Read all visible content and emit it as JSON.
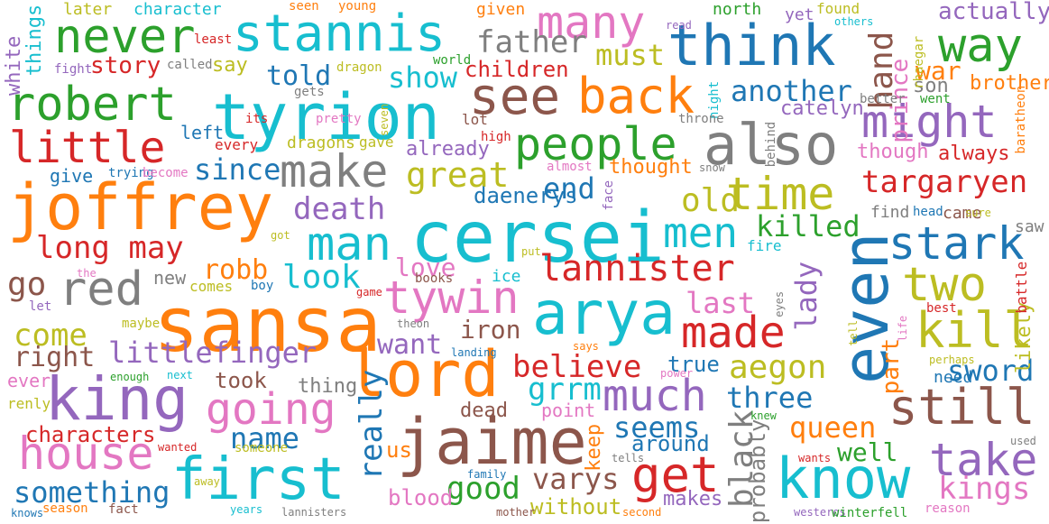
{
  "palette": {
    "blue": "#1f77b4",
    "orange": "#ff7f0e",
    "green": "#2ca02c",
    "red": "#d62728",
    "purple": "#9467bd",
    "brown": "#8c564b",
    "pink": "#e377c2",
    "gray": "#7f7f7f",
    "olive": "#bcbd22",
    "cyan": "#17becf"
  },
  "words": [
    {
      "text": "sansa",
      "color": "orange"
    },
    {
      "text": "cersei",
      "color": "cyan"
    },
    {
      "text": "joffrey",
      "color": "orange"
    },
    {
      "text": "tyrion",
      "color": "cyan"
    },
    {
      "text": "lord",
      "color": "orange"
    },
    {
      "text": "even",
      "color": "blue"
    },
    {
      "text": "jaime",
      "color": "brown"
    },
    {
      "text": "arya",
      "color": "cyan"
    },
    {
      "text": "king",
      "color": "purple"
    },
    {
      "text": "first",
      "color": "cyan"
    },
    {
      "text": "know",
      "color": "cyan"
    },
    {
      "text": "think",
      "color": "blue"
    },
    {
      "text": "also",
      "color": "gray"
    },
    {
      "text": "stannis",
      "color": "cyan"
    },
    {
      "text": "robert",
      "color": "green"
    },
    {
      "text": "many",
      "color": "pink"
    },
    {
      "text": "see",
      "color": "brown"
    },
    {
      "text": "man",
      "color": "cyan"
    },
    {
      "text": "never",
      "color": "green"
    },
    {
      "text": "back",
      "color": "orange"
    },
    {
      "text": "people",
      "color": "green"
    },
    {
      "text": "make",
      "color": "gray"
    },
    {
      "text": "time",
      "color": "olive"
    },
    {
      "text": "stark",
      "color": "blue"
    },
    {
      "text": "tywin",
      "color": "pink"
    },
    {
      "text": "made",
      "color": "red"
    },
    {
      "text": "much",
      "color": "purple"
    },
    {
      "text": "going",
      "color": "pink"
    },
    {
      "text": "house",
      "color": "pink"
    },
    {
      "text": "still",
      "color": "brown"
    },
    {
      "text": "get",
      "color": "red"
    },
    {
      "text": "take",
      "color": "purple"
    },
    {
      "text": "kill",
      "color": "olive"
    },
    {
      "text": "two",
      "color": "olive"
    },
    {
      "text": "way",
      "color": "green"
    },
    {
      "text": "might",
      "color": "purple"
    },
    {
      "text": "little",
      "color": "red"
    },
    {
      "text": "red",
      "color": "gray"
    },
    {
      "text": "lannister",
      "color": "red"
    },
    {
      "text": "men",
      "color": "cyan"
    },
    {
      "text": "great",
      "color": "olive"
    },
    {
      "text": "targaryen",
      "color": "red"
    },
    {
      "text": "another",
      "color": "blue"
    },
    {
      "text": "since",
      "color": "blue"
    },
    {
      "text": "father",
      "color": "gray"
    },
    {
      "text": "must",
      "color": "olive"
    },
    {
      "text": "show",
      "color": "cyan"
    },
    {
      "text": "told",
      "color": "blue"
    },
    {
      "text": "story",
      "color": "red"
    },
    {
      "text": "say",
      "color": "olive"
    },
    {
      "text": "children",
      "color": "red"
    },
    {
      "text": "hand",
      "color": "brown"
    },
    {
      "text": "war",
      "color": "orange"
    },
    {
      "text": "prince",
      "color": "pink"
    },
    {
      "text": "son",
      "color": "gray"
    },
    {
      "text": "brother",
      "color": "orange"
    },
    {
      "text": "actually",
      "color": "purple"
    },
    {
      "text": "long may",
      "color": "red"
    },
    {
      "text": "death",
      "color": "purple"
    },
    {
      "text": "end",
      "color": "blue"
    },
    {
      "text": "old",
      "color": "olive"
    },
    {
      "text": "killed",
      "color": "green"
    },
    {
      "text": "robb",
      "color": "orange"
    },
    {
      "text": "look",
      "color": "cyan"
    },
    {
      "text": "love",
      "color": "pink"
    },
    {
      "text": "go",
      "color": "brown"
    },
    {
      "text": "come",
      "color": "olive"
    },
    {
      "text": "littlefinger",
      "color": "purple"
    },
    {
      "text": "right",
      "color": "brown"
    },
    {
      "text": "want",
      "color": "purple"
    },
    {
      "text": "iron",
      "color": "brown"
    },
    {
      "text": "believe",
      "color": "red"
    },
    {
      "text": "grrm",
      "color": "cyan"
    },
    {
      "text": "last",
      "color": "pink"
    },
    {
      "text": "lady",
      "color": "purple"
    },
    {
      "text": "aegon",
      "color": "olive"
    },
    {
      "text": "part",
      "color": "orange"
    },
    {
      "text": "sword",
      "color": "blue"
    },
    {
      "text": "three",
      "color": "blue"
    },
    {
      "text": "queen",
      "color": "orange"
    },
    {
      "text": "seems",
      "color": "blue"
    },
    {
      "text": "black",
      "color": "gray"
    },
    {
      "text": "really",
      "color": "blue"
    },
    {
      "text": "name",
      "color": "blue"
    },
    {
      "text": "characters",
      "color": "red"
    },
    {
      "text": "something",
      "color": "blue"
    },
    {
      "text": "good",
      "color": "green"
    },
    {
      "text": "varys",
      "color": "brown"
    },
    {
      "text": "kings",
      "color": "pink"
    },
    {
      "text": "well",
      "color": "green"
    },
    {
      "text": "around",
      "color": "blue"
    },
    {
      "text": "probably",
      "color": "gray"
    },
    {
      "text": "us",
      "color": "orange"
    },
    {
      "text": "dead",
      "color": "brown"
    },
    {
      "text": "keep",
      "color": "orange"
    },
    {
      "text": "blood",
      "color": "pink"
    },
    {
      "text": "without",
      "color": "olive"
    },
    {
      "text": "makes",
      "color": "purple"
    },
    {
      "text": "took",
      "color": "brown"
    },
    {
      "text": "thing",
      "color": "gray"
    },
    {
      "text": "true",
      "color": "blue"
    },
    {
      "text": "point",
      "color": "pink"
    },
    {
      "text": "daenerys",
      "color": "blue"
    },
    {
      "text": "thought",
      "color": "orange"
    },
    {
      "text": "give",
      "color": "blue"
    },
    {
      "text": "left",
      "color": "blue"
    },
    {
      "text": "already",
      "color": "purple"
    },
    {
      "text": "dragons",
      "color": "olive"
    },
    {
      "text": "catelyn",
      "color": "purple"
    },
    {
      "text": "though",
      "color": "pink"
    },
    {
      "text": "always",
      "color": "red"
    },
    {
      "text": "new",
      "color": "gray"
    },
    {
      "text": "white",
      "color": "purple"
    },
    {
      "text": "things",
      "color": "cyan"
    },
    {
      "text": "later",
      "color": "olive"
    },
    {
      "text": "character",
      "color": "cyan"
    },
    {
      "text": "given",
      "color": "orange"
    },
    {
      "text": "north",
      "color": "green"
    },
    {
      "text": "yet",
      "color": "purple"
    },
    {
      "text": "likely",
      "color": "olive"
    },
    {
      "text": "ever",
      "color": "pink"
    },
    {
      "text": "came",
      "color": "brown"
    },
    {
      "text": "find",
      "color": "gray"
    },
    {
      "text": "saw",
      "color": "gray"
    },
    {
      "text": "need",
      "color": "blue"
    },
    {
      "text": "fire",
      "color": "cyan"
    },
    {
      "text": "ice",
      "color": "cyan"
    },
    {
      "text": "books",
      "color": "brown"
    },
    {
      "text": "comes",
      "color": "olive"
    },
    {
      "text": "battle",
      "color": "red"
    },
    {
      "text": "renly",
      "color": "olive"
    },
    {
      "text": "found",
      "color": "olive"
    },
    {
      "text": "seen",
      "color": "orange"
    },
    {
      "text": "young",
      "color": "orange"
    },
    {
      "text": "dragon",
      "color": "olive"
    },
    {
      "text": "world",
      "color": "green"
    },
    {
      "text": "read",
      "color": "purple"
    },
    {
      "text": "others",
      "color": "cyan"
    },
    {
      "text": "rhaegar",
      "color": "olive"
    },
    {
      "text": "gets",
      "color": "gray"
    },
    {
      "text": "seven",
      "color": "olive"
    },
    {
      "text": "night",
      "color": "cyan"
    },
    {
      "text": "went",
      "color": "green"
    },
    {
      "text": "better",
      "color": "gray"
    },
    {
      "text": "baratheon",
      "color": "orange"
    },
    {
      "text": "least",
      "color": "red"
    },
    {
      "text": "fight",
      "color": "purple"
    },
    {
      "text": "called",
      "color": "gray"
    },
    {
      "text": "its",
      "color": "red"
    },
    {
      "text": "pretty",
      "color": "pink"
    },
    {
      "text": "lot",
      "color": "brown"
    },
    {
      "text": "high",
      "color": "red"
    },
    {
      "text": "throne",
      "color": "gray"
    },
    {
      "text": "behind",
      "color": "gray"
    },
    {
      "text": "every",
      "color": "red"
    },
    {
      "text": "gave",
      "color": "olive"
    },
    {
      "text": "almost",
      "color": "pink"
    },
    {
      "text": "snow",
      "color": "gray"
    },
    {
      "text": "trying",
      "color": "blue"
    },
    {
      "text": "become",
      "color": "pink"
    },
    {
      "text": "face",
      "color": "purple"
    },
    {
      "text": "head",
      "color": "blue"
    },
    {
      "text": "sure",
      "color": "olive"
    },
    {
      "text": "got",
      "color": "olive"
    },
    {
      "text": "put",
      "color": "olive"
    },
    {
      "text": "the",
      "color": "pink"
    },
    {
      "text": "boy",
      "color": "blue"
    },
    {
      "text": "game",
      "color": "red"
    },
    {
      "text": "let",
      "color": "purple"
    },
    {
      "text": "eyes",
      "color": "gray"
    },
    {
      "text": "life",
      "color": "pink"
    },
    {
      "text": "best",
      "color": "red"
    },
    {
      "text": "maybe",
      "color": "olive"
    },
    {
      "text": "theon",
      "color": "gray"
    },
    {
      "text": "landing",
      "color": "blue"
    },
    {
      "text": "tell",
      "color": "olive"
    },
    {
      "text": "says",
      "color": "orange"
    },
    {
      "text": "power",
      "color": "pink"
    },
    {
      "text": "perhaps",
      "color": "olive"
    },
    {
      "text": "enough",
      "color": "green"
    },
    {
      "text": "next",
      "color": "cyan"
    },
    {
      "text": "someone",
      "color": "olive"
    },
    {
      "text": "wanted",
      "color": "red"
    },
    {
      "text": "away",
      "color": "olive"
    },
    {
      "text": "family",
      "color": "blue"
    },
    {
      "text": "tells",
      "color": "gray"
    },
    {
      "text": "wants",
      "color": "red"
    },
    {
      "text": "used",
      "color": "gray"
    },
    {
      "text": "knew",
      "color": "green"
    },
    {
      "text": "knows",
      "color": "blue"
    },
    {
      "text": "season",
      "color": "orange"
    },
    {
      "text": "fact",
      "color": "brown"
    },
    {
      "text": "years",
      "color": "cyan"
    },
    {
      "text": "lannisters",
      "color": "gray"
    },
    {
      "text": "mother",
      "color": "brown"
    },
    {
      "text": "second",
      "color": "orange"
    },
    {
      "text": "westeros",
      "color": "purple"
    },
    {
      "text": "winterfell",
      "color": "green"
    },
    {
      "text": "reason",
      "color": "pink"
    }
  ]
}
